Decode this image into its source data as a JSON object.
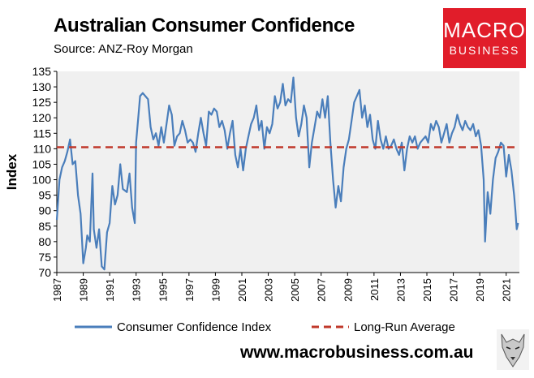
{
  "header": {
    "title": "Australian Consumer Confidence",
    "source": "Source: ANZ-Roy Morgan"
  },
  "logo": {
    "line1": "MACRO",
    "line2": "BUSINESS",
    "color": "#e11d2a"
  },
  "footer": {
    "website": "www.macrobusiness.com.au"
  },
  "colors": {
    "series": "#4a7ebb",
    "average": "#c0392b",
    "plot_bg": "#f0f0f0"
  },
  "chart_data": {
    "type": "line",
    "title": "Australian Consumer Confidence",
    "xlabel": "",
    "ylabel": "Index",
    "xlim": [
      1987,
      2022
    ],
    "ylim": [
      70,
      135
    ],
    "x_ticks": [
      "1987",
      "1989",
      "1991",
      "1993",
      "1995",
      "1997",
      "1999",
      "2001",
      "2003",
      "2005",
      "2007",
      "2009",
      "2011",
      "2013",
      "2015",
      "2017",
      "2019",
      "2021"
    ],
    "y_ticks": [
      "70",
      "75",
      "80",
      "85",
      "90",
      "95",
      "100",
      "105",
      "110",
      "115",
      "120",
      "125",
      "130",
      "135"
    ],
    "legend_position": "bottom",
    "series": [
      {
        "name": "Consumer Confidence Index",
        "style": "solid",
        "points": [
          [
            1987.0,
            87
          ],
          [
            1987.2,
            100
          ],
          [
            1987.4,
            104
          ],
          [
            1987.6,
            106
          ],
          [
            1987.8,
            109
          ],
          [
            1988.0,
            113
          ],
          [
            1988.2,
            105
          ],
          [
            1988.4,
            106
          ],
          [
            1988.6,
            95
          ],
          [
            1988.8,
            89
          ],
          [
            1989.0,
            73
          ],
          [
            1989.2,
            78
          ],
          [
            1989.3,
            82
          ],
          [
            1989.5,
            80
          ],
          [
            1989.7,
            102
          ],
          [
            1989.8,
            84
          ],
          [
            1990.0,
            78
          ],
          [
            1990.2,
            84
          ],
          [
            1990.4,
            72
          ],
          [
            1990.6,
            71
          ],
          [
            1990.8,
            83
          ],
          [
            1991.0,
            86
          ],
          [
            1991.2,
            98
          ],
          [
            1991.4,
            92
          ],
          [
            1991.6,
            95
          ],
          [
            1991.8,
            105
          ],
          [
            1992.0,
            97
          ],
          [
            1992.3,
            96
          ],
          [
            1992.5,
            102
          ],
          [
            1992.7,
            91
          ],
          [
            1992.9,
            86
          ],
          [
            1993.0,
            112
          ],
          [
            1993.2,
            122
          ],
          [
            1993.3,
            127
          ],
          [
            1993.5,
            128
          ],
          [
            1993.7,
            127
          ],
          [
            1993.9,
            126
          ],
          [
            1994.1,
            117
          ],
          [
            1994.3,
            113
          ],
          [
            1994.5,
            115
          ],
          [
            1994.7,
            111
          ],
          [
            1994.9,
            117
          ],
          [
            1995.1,
            112
          ],
          [
            1995.3,
            118
          ],
          [
            1995.5,
            124
          ],
          [
            1995.7,
            121
          ],
          [
            1995.9,
            111
          ],
          [
            1996.1,
            114
          ],
          [
            1996.3,
            115
          ],
          [
            1996.5,
            119
          ],
          [
            1996.7,
            116
          ],
          [
            1996.9,
            112
          ],
          [
            1997.1,
            113
          ],
          [
            1997.3,
            112
          ],
          [
            1997.5,
            109
          ],
          [
            1997.7,
            115
          ],
          [
            1997.9,
            120
          ],
          [
            1998.1,
            115
          ],
          [
            1998.3,
            111
          ],
          [
            1998.5,
            122
          ],
          [
            1998.7,
            121
          ],
          [
            1998.9,
            123
          ],
          [
            1999.1,
            122
          ],
          [
            1999.3,
            117
          ],
          [
            1999.5,
            119
          ],
          [
            1999.7,
            116
          ],
          [
            1999.9,
            110
          ],
          [
            2000.1,
            115
          ],
          [
            2000.3,
            119
          ],
          [
            2000.5,
            108
          ],
          [
            2000.7,
            104
          ],
          [
            2000.9,
            110
          ],
          [
            2001.1,
            103
          ],
          [
            2001.3,
            110
          ],
          [
            2001.5,
            114
          ],
          [
            2001.7,
            118
          ],
          [
            2001.9,
            120
          ],
          [
            2002.1,
            124
          ],
          [
            2002.3,
            116
          ],
          [
            2002.5,
            119
          ],
          [
            2002.7,
            110
          ],
          [
            2002.9,
            117
          ],
          [
            2003.1,
            115
          ],
          [
            2003.3,
            118
          ],
          [
            2003.5,
            127
          ],
          [
            2003.7,
            123
          ],
          [
            2003.9,
            125
          ],
          [
            2004.1,
            131
          ],
          [
            2004.3,
            124
          ],
          [
            2004.5,
            126
          ],
          [
            2004.7,
            125
          ],
          [
            2004.9,
            133
          ],
          [
            2005.1,
            120
          ],
          [
            2005.3,
            114
          ],
          [
            2005.5,
            118
          ],
          [
            2005.7,
            124
          ],
          [
            2005.9,
            120
          ],
          [
            2006.1,
            104
          ],
          [
            2006.3,
            112
          ],
          [
            2006.5,
            117
          ],
          [
            2006.7,
            122
          ],
          [
            2006.9,
            120
          ],
          [
            2007.1,
            126
          ],
          [
            2007.3,
            120
          ],
          [
            2007.5,
            127
          ],
          [
            2007.7,
            112
          ],
          [
            2007.9,
            100
          ],
          [
            2008.1,
            91
          ],
          [
            2008.3,
            98
          ],
          [
            2008.5,
            93
          ],
          [
            2008.7,
            104
          ],
          [
            2008.9,
            110
          ],
          [
            2009.1,
            113
          ],
          [
            2009.3,
            119
          ],
          [
            2009.5,
            125
          ],
          [
            2009.7,
            127
          ],
          [
            2009.9,
            129
          ],
          [
            2010.1,
            120
          ],
          [
            2010.3,
            124
          ],
          [
            2010.5,
            117
          ],
          [
            2010.7,
            121
          ],
          [
            2010.9,
            113
          ],
          [
            2011.1,
            110
          ],
          [
            2011.3,
            119
          ],
          [
            2011.5,
            113
          ],
          [
            2011.7,
            110
          ],
          [
            2011.9,
            114
          ],
          [
            2012.1,
            110
          ],
          [
            2012.3,
            111
          ],
          [
            2012.5,
            113
          ],
          [
            2012.7,
            110
          ],
          [
            2012.9,
            108
          ],
          [
            2013.1,
            112
          ],
          [
            2013.3,
            103
          ],
          [
            2013.5,
            110
          ],
          [
            2013.7,
            114
          ],
          [
            2013.9,
            112
          ],
          [
            2014.1,
            114
          ],
          [
            2014.3,
            110
          ],
          [
            2014.5,
            112
          ],
          [
            2014.7,
            113
          ],
          [
            2014.9,
            114
          ],
          [
            2015.1,
            112
          ],
          [
            2015.3,
            118
          ],
          [
            2015.5,
            116
          ],
          [
            2015.7,
            119
          ],
          [
            2015.9,
            117
          ],
          [
            2016.1,
            112
          ],
          [
            2016.3,
            115
          ],
          [
            2016.5,
            118
          ],
          [
            2016.7,
            112
          ],
          [
            2016.9,
            115
          ],
          [
            2017.1,
            117
          ],
          [
            2017.3,
            121
          ],
          [
            2017.5,
            118
          ],
          [
            2017.7,
            116
          ],
          [
            2017.9,
            119
          ],
          [
            2018.1,
            117
          ],
          [
            2018.3,
            116
          ],
          [
            2018.5,
            118
          ],
          [
            2018.7,
            114
          ],
          [
            2018.9,
            116
          ],
          [
            2019.1,
            111
          ],
          [
            2019.3,
            100
          ],
          [
            2019.4,
            80
          ],
          [
            2019.6,
            96
          ],
          [
            2019.8,
            89
          ],
          [
            2020.0,
            100
          ],
          [
            2020.2,
            107
          ],
          [
            2020.4,
            109
          ],
          [
            2020.6,
            112
          ],
          [
            2020.8,
            111
          ],
          [
            2021.0,
            101
          ],
          [
            2021.2,
            108
          ],
          [
            2021.4,
            103
          ],
          [
            2021.6,
            95
          ],
          [
            2021.7,
            90
          ],
          [
            2021.8,
            84
          ],
          [
            2021.9,
            86
          ]
        ]
      },
      {
        "name": "Long-Run Average",
        "style": "dashed",
        "points": [
          [
            1987.0,
            110.5
          ],
          [
            2021.9,
            110.5
          ]
        ]
      }
    ]
  }
}
